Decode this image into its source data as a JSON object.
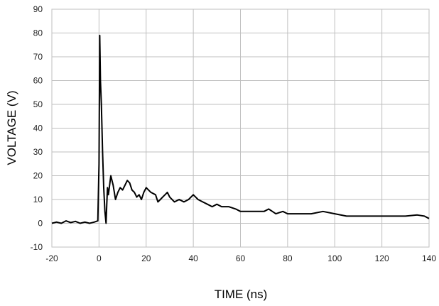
{
  "chart_data": {
    "type": "line",
    "title": "",
    "xlabel": "TIME (ns)",
    "ylabel": "VOLTAGE (V)",
    "xlim": [
      -20,
      140
    ],
    "ylim": [
      -10,
      90
    ],
    "xticks": [
      -20,
      0,
      20,
      40,
      60,
      80,
      100,
      120,
      140
    ],
    "yticks": [
      -10,
      0,
      10,
      20,
      30,
      40,
      50,
      60,
      70,
      80,
      90
    ],
    "grid": true,
    "legend": "none",
    "line_color": "#000000",
    "series": [
      {
        "x": [
          -20,
          -18,
          -16,
          -14,
          -12,
          -10,
          -8,
          -6,
          -4,
          -2,
          -0.5,
          0,
          0.3,
          0.6,
          1,
          1.5,
          2,
          2.5,
          3,
          3.3,
          3.6,
          4,
          5,
          6,
          7,
          8,
          9,
          10,
          11,
          12,
          13,
          14,
          15,
          16,
          17,
          18,
          19,
          20,
          22,
          24,
          25,
          26,
          27,
          28,
          29,
          30,
          32,
          34,
          36,
          38,
          40,
          41,
          42,
          44,
          46,
          48,
          50,
          52,
          55,
          58,
          60,
          62,
          65,
          68,
          70,
          72,
          75,
          78,
          80,
          85,
          90,
          95,
          100,
          105,
          110,
          115,
          120,
          125,
          130,
          135,
          138,
          140
        ],
        "y": [
          0,
          0.5,
          0,
          1,
          0.3,
          0.8,
          0,
          0.5,
          0,
          0.5,
          1,
          25,
          79,
          60,
          50,
          30,
          15,
          5,
          0,
          8,
          15,
          12,
          20,
          16,
          10,
          13,
          15,
          14,
          16,
          18,
          17,
          14,
          13,
          11,
          12,
          10,
          13,
          15,
          13,
          12,
          9,
          10,
          11,
          12,
          13,
          11,
          9,
          10,
          9,
          10,
          12,
          11,
          10,
          9,
          8,
          7,
          8,
          7,
          7,
          6,
          5,
          5,
          5,
          5,
          5,
          6,
          4,
          5,
          4,
          4,
          4,
          5,
          4,
          3,
          3,
          3,
          3,
          3,
          3,
          3.5,
          3,
          2
        ]
      }
    ]
  }
}
